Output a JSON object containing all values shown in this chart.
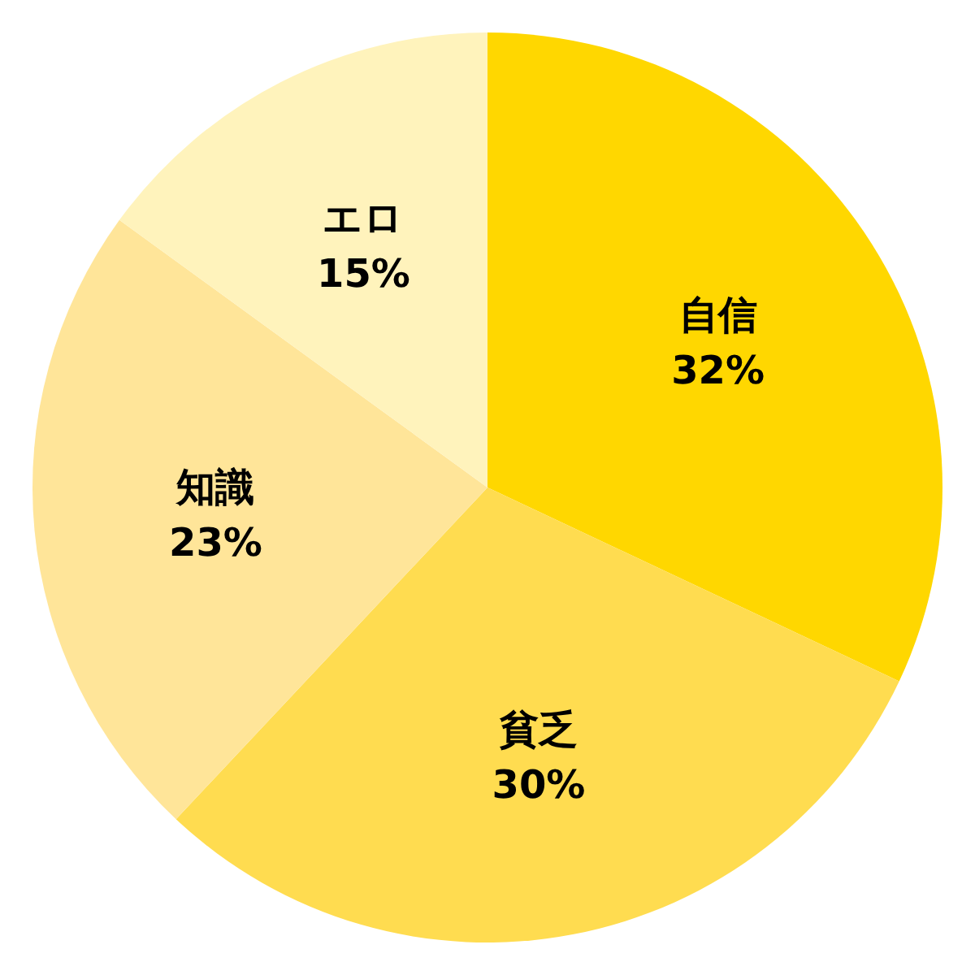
{
  "chart_data": {
    "type": "pie",
    "categories": [
      "自信",
      "貧乏",
      "知識",
      "エロ"
    ],
    "values": [
      32,
      30,
      23,
      15
    ],
    "colors": [
      "#ffd700",
      "#ffdc50",
      "#ffe599",
      "#fff3bc"
    ],
    "value_labels": [
      "32%",
      "30%",
      "23%",
      "15%"
    ]
  }
}
